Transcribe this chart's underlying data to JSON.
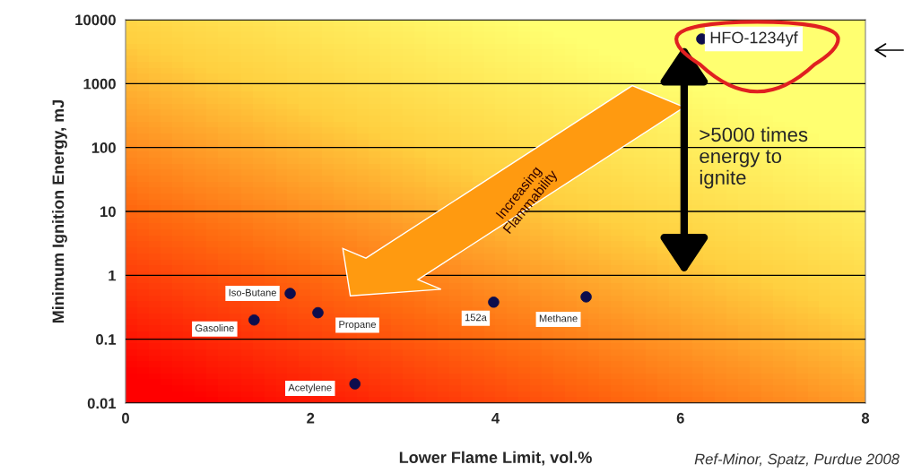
{
  "chart_data": {
    "type": "scatter",
    "xlabel": "Lower Flame Limit, vol.%",
    "ylabel": "Minimum Ignition Energy, mJ",
    "x": [
      1.39,
      1.78,
      2.08,
      2.48,
      3.98,
      4.98,
      6.23
    ],
    "series": [
      {
        "color": "#0d0d4d",
        "values": [
          0.2,
          0.52,
          0.26,
          0.02,
          0.38,
          0.46,
          5000
        ]
      }
    ],
    "log": "y",
    "xlim": [
      0,
      8
    ],
    "xticks": [
      0,
      2,
      4,
      6,
      8
    ],
    "ylim": [
      0.01,
      10000
    ],
    "yticks": [
      0.01,
      0.1,
      1,
      10,
      100,
      1000,
      10000
    ],
    "grid": "y",
    "marker": "circle",
    "annotations": [
      {
        "text": "Gasoline",
        "x": 1.39,
        "y": 0.2
      },
      {
        "text": "Iso-Butane",
        "x": 1.78,
        "y": 0.52
      },
      {
        "text": "Propane",
        "x": 2.08,
        "y": 0.26
      },
      {
        "text": "Acetylene",
        "x": 2.48,
        "y": 0.02
      },
      {
        "text": "152a",
        "x": 3.98,
        "y": 0.38
      },
      {
        "text": "Methane",
        "x": 4.98,
        "y": 0.46
      },
      {
        "text": "HFO-1234yf",
        "x": 6.23,
        "y": 5000
      },
      ">5000 times\nenergy to\nignite",
      "Increasing\nFlammability",
      "Ref-Minor, Spatz, Purdue 2008"
    ]
  }
}
